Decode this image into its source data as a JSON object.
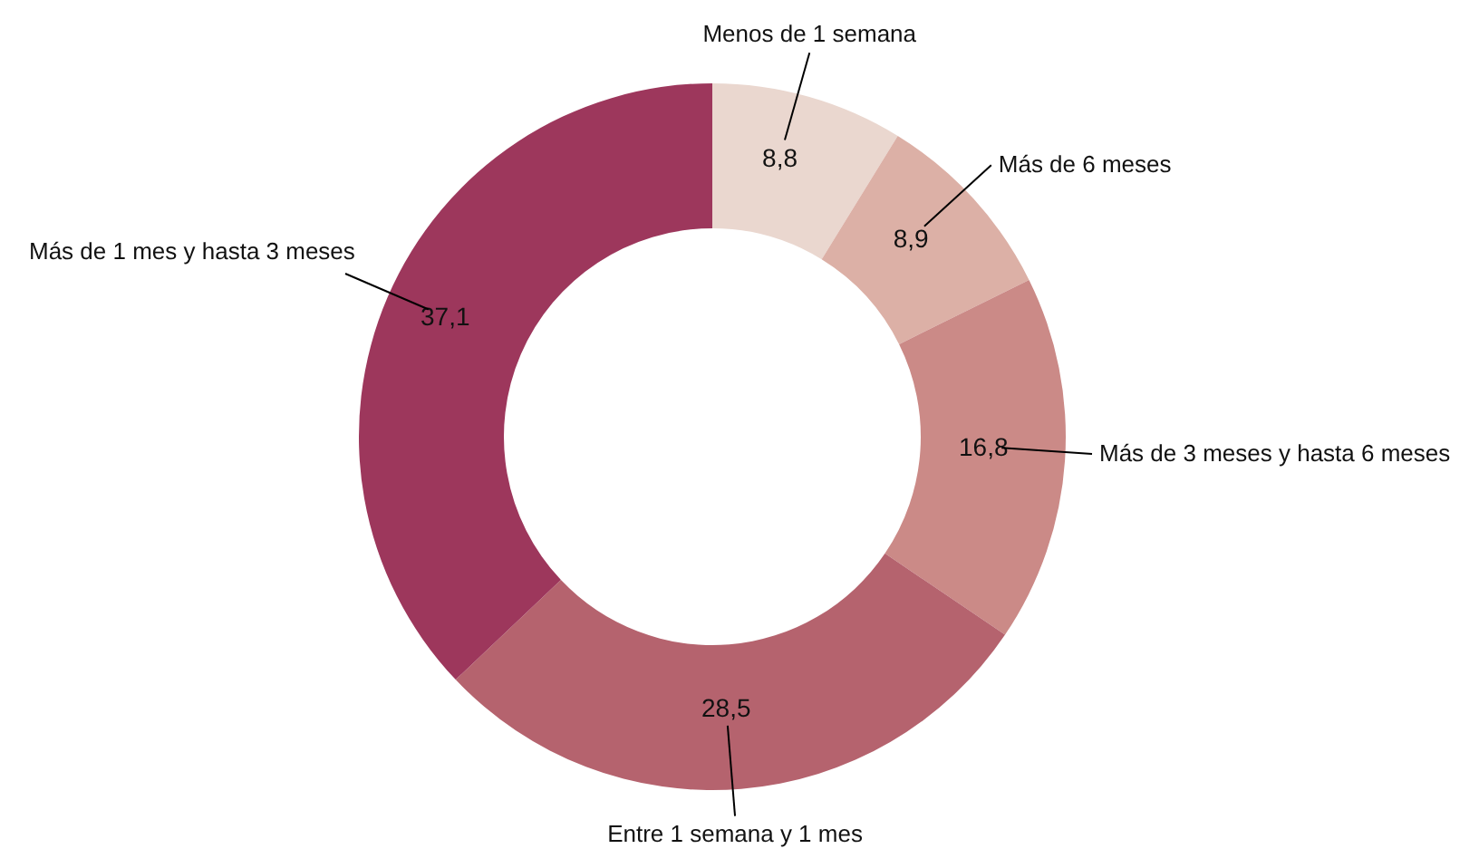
{
  "chart_data": {
    "type": "donut",
    "categories": [
      "Menos de 1 semana",
      "Más de 6 meses",
      "Más de 3 meses y hasta 6 meses",
      "Entre 1 semana y 1 mes",
      "Más de 1 mes y hasta 3 meses"
    ],
    "values": [
      8.8,
      8.9,
      16.8,
      28.5,
      37.1
    ],
    "value_labels": [
      "8,8",
      "8,9",
      "16,8",
      "28,5",
      "37,1"
    ],
    "colors": [
      "#ead7cf",
      "#dcb0a6",
      "#cb8a87",
      "#b5636e",
      "#9d375c"
    ]
  }
}
